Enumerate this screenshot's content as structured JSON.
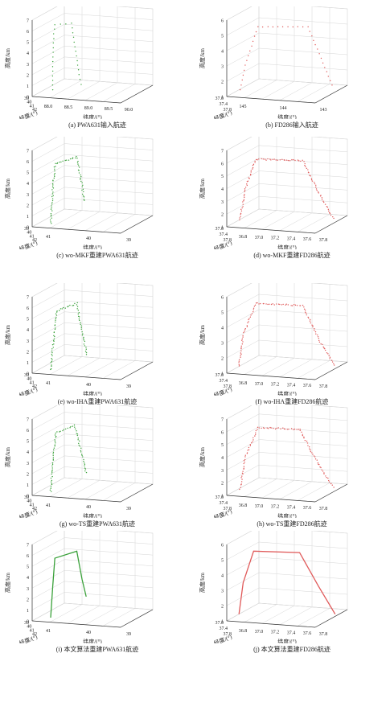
{
  "colors": {
    "pwa631": "#3aa13a",
    "fd286": "#e05a5a",
    "grid": "#d6d6d6",
    "axis": "#333333"
  },
  "chart_data": [
    {
      "id": "a",
      "type": "scatter",
      "caption": "(a) PWA631输入航迹",
      "zlabel": "高度/km",
      "xlabel": "纬度/(°)",
      "ylabel": "经度/(°)",
      "zticks": [
        "0",
        "1",
        "2",
        "3",
        "4",
        "5",
        "6",
        "7"
      ],
      "xticks": [
        "88.0",
        "88.5",
        "89.0",
        "89.5",
        "90.0"
      ],
      "yticks": [
        "39",
        "40",
        "41",
        "42"
      ],
      "series": [
        {
          "color": "#3aa13a",
          "style": "sparse",
          "points": [
            [
              0.12,
              0.05
            ],
            [
              0.12,
              0.45
            ],
            [
              0.13,
              0.85
            ],
            [
              0.14,
              0.98
            ],
            [
              0.3,
              1.0
            ],
            [
              0.38,
              0.2
            ],
            [
              0.4,
              0.05
            ]
          ]
        }
      ]
    },
    {
      "id": "b",
      "type": "scatter",
      "caption": "(b) FD286输入航迹",
      "zlabel": "高度/km",
      "xlabel": "纬度/(°)",
      "ylabel": "经度/(°)",
      "zticks": [
        "1",
        "2",
        "3",
        "4",
        "5",
        "6"
      ],
      "xticks": [
        "145",
        "144",
        "143"
      ],
      "yticks": [
        "37.0",
        "37.4",
        "37.8"
      ],
      "series": [
        {
          "color": "#e05a5a",
          "style": "sparse",
          "points": [
            [
              0.05,
              0.05
            ],
            [
              0.1,
              0.4
            ],
            [
              0.22,
              0.95
            ],
            [
              0.7,
              0.95
            ],
            [
              0.95,
              0.05
            ]
          ]
        }
      ]
    },
    {
      "id": "c",
      "type": "scatter",
      "caption": "(c) wo-MKF重建PWA631航迹",
      "zlabel": "高度/km",
      "xlabel": "纬度/(°)",
      "ylabel": "经度/(°)",
      "zticks": [
        "0",
        "1",
        "2",
        "3",
        "4",
        "5",
        "6",
        "7"
      ],
      "xticks": [
        "41",
        "40",
        "39"
      ],
      "yticks": [
        "39",
        "40",
        "41",
        "42"
      ],
      "series": [
        {
          "color": "#3aa13a",
          "style": "dense",
          "points": [
            [
              0.1,
              0.0
            ],
            [
              0.12,
              0.45
            ],
            [
              0.14,
              0.85
            ],
            [
              0.35,
              0.95
            ],
            [
              0.4,
              0.55
            ],
            [
              0.42,
              0.3
            ]
          ]
        }
      ]
    },
    {
      "id": "d",
      "type": "scatter",
      "caption": "(d) wo-MKF重建FD286航迹",
      "zlabel": "高度/km",
      "xlabel": "纬度/(°)",
      "ylabel": "经度/(°)",
      "zticks": [
        "1",
        "2",
        "3",
        "4",
        "5",
        "6",
        "7"
      ],
      "xticks": [
        "36.8",
        "37.0",
        "37.2",
        "37.4",
        "37.6",
        "37.8"
      ],
      "yticks": [
        "37.0",
        "37.4",
        "37.8"
      ],
      "series": [
        {
          "color": "#e05a5a",
          "style": "dense",
          "points": [
            [
              0.05,
              0.05
            ],
            [
              0.1,
              0.5
            ],
            [
              0.2,
              0.92
            ],
            [
              0.65,
              0.9
            ],
            [
              0.8,
              0.45
            ],
            [
              0.95,
              0.05
            ]
          ]
        }
      ]
    },
    {
      "id": "e",
      "type": "scatter",
      "caption": "(e) wo-IHA重建PWA631航迹",
      "zlabel": "高度/km",
      "xlabel": "纬度/(°)",
      "ylabel": "经度/(°)",
      "zticks": [
        "0",
        "1",
        "2",
        "3",
        "4",
        "5",
        "6",
        "7"
      ],
      "xticks": [
        "41",
        "40",
        "39"
      ],
      "yticks": [
        "39",
        "40",
        "41",
        "42"
      ],
      "series": [
        {
          "color": "#3aa13a",
          "style": "dense",
          "points": [
            [
              0.1,
              0.0
            ],
            [
              0.13,
              0.45
            ],
            [
              0.16,
              0.85
            ],
            [
              0.35,
              0.95
            ],
            [
              0.4,
              0.55
            ],
            [
              0.45,
              0.2
            ]
          ]
        }
      ]
    },
    {
      "id": "f",
      "type": "scatter",
      "caption": "(f) wo-IHA重建FD286航迹",
      "zlabel": "高度/km",
      "xlabel": "纬度/(°)",
      "ylabel": "经度/(°)",
      "zticks": [
        "1",
        "2",
        "3",
        "4",
        "5",
        "6"
      ],
      "xticks": [
        "36.8",
        "37.0",
        "37.2",
        "37.4",
        "37.6",
        "37.8"
      ],
      "yticks": [
        "37.0",
        "37.4",
        "37.8"
      ],
      "series": [
        {
          "color": "#e05a5a",
          "style": "dense",
          "points": [
            [
              0.04,
              0.05
            ],
            [
              0.08,
              0.5
            ],
            [
              0.2,
              0.95
            ],
            [
              0.65,
              0.92
            ],
            [
              0.8,
              0.45
            ],
            [
              0.96,
              0.05
            ]
          ]
        }
      ]
    },
    {
      "id": "g",
      "type": "scatter",
      "caption": "(g) wo-TS重建PWA631航迹",
      "zlabel": "高度/km",
      "xlabel": "纬度/(°)",
      "ylabel": "经度/(°)",
      "zticks": [
        "0",
        "1",
        "2",
        "3",
        "4",
        "5",
        "6",
        "7"
      ],
      "xticks": [
        "41",
        "40",
        "39"
      ],
      "yticks": [
        "39",
        "40",
        "41",
        "42"
      ],
      "series": [
        {
          "color": "#3aa13a",
          "style": "dense",
          "points": [
            [
              0.1,
              0.0
            ],
            [
              0.12,
              0.45
            ],
            [
              0.15,
              0.85
            ],
            [
              0.33,
              0.95
            ],
            [
              0.4,
              0.55
            ],
            [
              0.44,
              0.25
            ]
          ]
        }
      ]
    },
    {
      "id": "h",
      "type": "scatter",
      "caption": "(h) wo-TS重建FD286航迹",
      "zlabel": "高度/km",
      "xlabel": "纬度/(°)",
      "ylabel": "经度/(°)",
      "zticks": [
        "1",
        "2",
        "3",
        "4",
        "5",
        "6",
        "7"
      ],
      "xticks": [
        "36.8",
        "37.0",
        "37.2",
        "37.4",
        "37.6",
        "37.8"
      ],
      "yticks": [
        "37.0",
        "37.4",
        "37.8"
      ],
      "series": [
        {
          "color": "#e05a5a",
          "style": "dense",
          "points": [
            [
              0.05,
              0.05
            ],
            [
              0.1,
              0.5
            ],
            [
              0.22,
              0.92
            ],
            [
              0.62,
              0.9
            ],
            [
              0.78,
              0.45
            ],
            [
              0.95,
              0.05
            ]
          ]
        }
      ]
    },
    {
      "id": "i",
      "type": "line",
      "caption": "(i) 本文算法重建PWA631航迹",
      "zlabel": "高度/km",
      "xlabel": "纬度/(°)",
      "ylabel": "经度/(°)",
      "zticks": [
        "0",
        "1",
        "2",
        "3",
        "4",
        "5",
        "6",
        "7"
      ],
      "xticks": [
        "41",
        "40",
        "39"
      ],
      "yticks": [
        "39",
        "40",
        "41",
        "42"
      ],
      "series": [
        {
          "color": "#3aa13a",
          "style": "line",
          "points": [
            [
              0.1,
              0.0
            ],
            [
              0.12,
              0.45
            ],
            [
              0.14,
              0.85
            ],
            [
              0.35,
              0.95
            ],
            [
              0.4,
              0.55
            ],
            [
              0.44,
              0.3
            ]
          ]
        }
      ]
    },
    {
      "id": "j",
      "type": "line",
      "caption": "(j) 本文算法重建FD286航迹",
      "zlabel": "高度/km",
      "xlabel": "纬度/(°)",
      "ylabel": "经度/(°)",
      "zticks": [
        "1",
        "2",
        "3",
        "4",
        "5",
        "6"
      ],
      "xticks": [
        "36.8",
        "37.0",
        "37.2",
        "37.4",
        "37.6",
        "37.8"
      ],
      "yticks": [
        "37.0",
        "37.4",
        "37.8"
      ],
      "series": [
        {
          "color": "#e05a5a",
          "style": "line",
          "points": [
            [
              0.04,
              0.05
            ],
            [
              0.08,
              0.5
            ],
            [
              0.18,
              0.95
            ],
            [
              0.62,
              0.93
            ],
            [
              0.8,
              0.45
            ],
            [
              0.96,
              0.05
            ]
          ]
        }
      ]
    }
  ]
}
